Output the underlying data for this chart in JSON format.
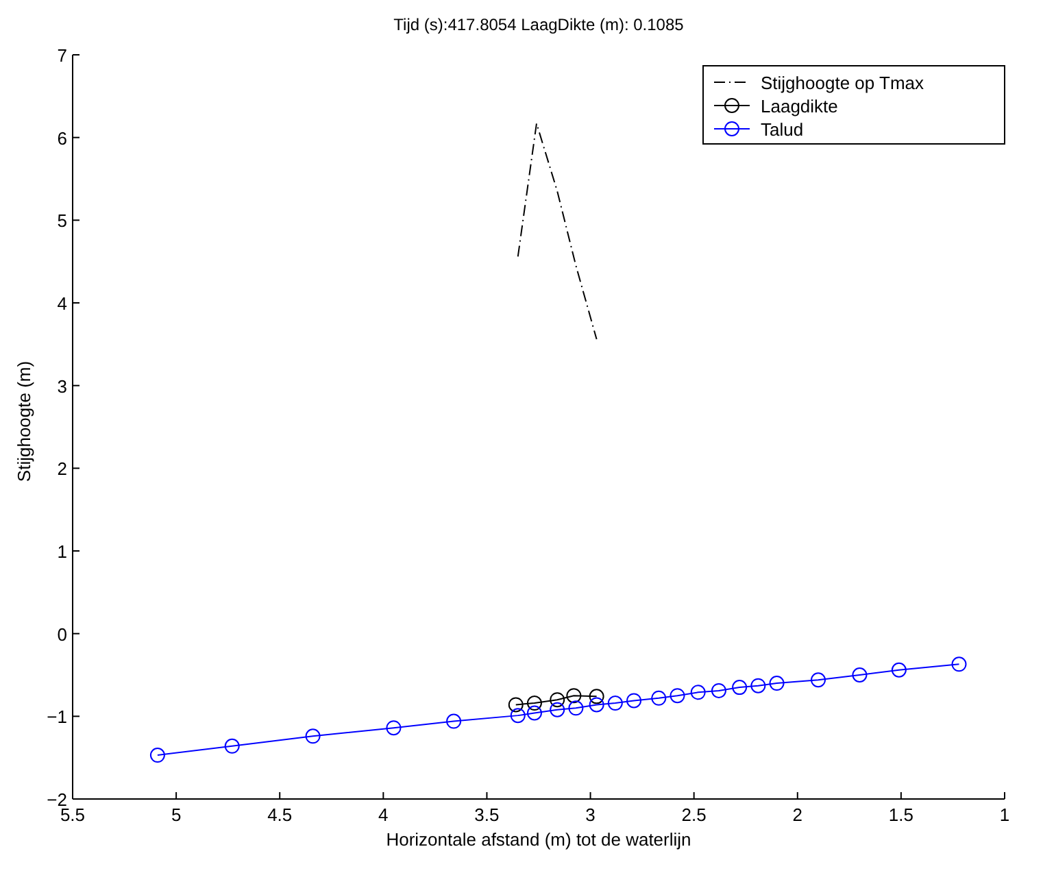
{
  "chart_data": {
    "type": "line",
    "title": "Tijd (s):417.8054  LaagDikte (m): 0.1085",
    "xlabel": "Horizontale afstand (m) tot de waterlijn",
    "ylabel": "Stijghoogte (m)",
    "xlim": [
      5.5,
      1
    ],
    "xticks": [
      5.5,
      5,
      4.5,
      4,
      3.5,
      3,
      2.5,
      2,
      1.5,
      1
    ],
    "ylim": [
      -2,
      7
    ],
    "yticks": [
      -2,
      -1,
      0,
      1,
      2,
      3,
      4,
      5,
      6,
      7
    ],
    "grid": false,
    "legend": "top right",
    "series": [
      {
        "name": "Stijghoogte op Tmax",
        "color": "#000000",
        "line_style": "dashed",
        "marker": "none",
        "x": [
          3.35,
          3.26,
          3.16,
          3.07,
          2.97
        ],
        "values": [
          4.56,
          6.17,
          5.35,
          4.45,
          3.56
        ]
      },
      {
        "name": "Laagdikte",
        "color": "#000000",
        "line_style": "solid",
        "marker": "circle",
        "x": [
          3.36,
          3.27,
          3.16,
          3.08,
          2.97
        ],
        "values": [
          -0.86,
          -0.84,
          -0.8,
          -0.75,
          -0.76
        ]
      },
      {
        "name": "Talud",
        "color": "#0000ff",
        "line_style": "solid",
        "marker": "circle",
        "x": [
          5.09,
          4.73,
          4.34,
          3.95,
          3.66,
          3.35,
          3.27,
          3.16,
          3.07,
          2.97,
          2.88,
          2.79,
          2.67,
          2.58,
          2.48,
          2.38,
          2.28,
          2.19,
          2.1,
          1.9,
          1.7,
          1.51,
          1.22
        ],
        "values": [
          -1.47,
          -1.36,
          -1.24,
          -1.14,
          -1.06,
          -0.99,
          -0.96,
          -0.92,
          -0.9,
          -0.86,
          -0.84,
          -0.81,
          -0.78,
          -0.75,
          -0.71,
          -0.69,
          -0.65,
          -0.63,
          -0.6,
          -0.56,
          -0.5,
          -0.44,
          -0.37
        ]
      }
    ]
  }
}
